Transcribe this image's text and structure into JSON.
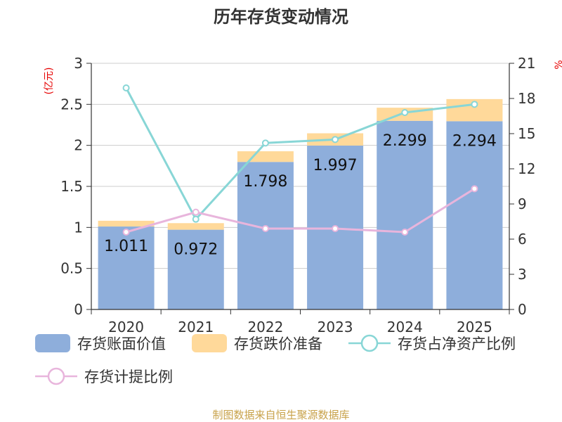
{
  "chart_data": {
    "type": "bar",
    "title": "历年存货变动情况",
    "categories": [
      "2020",
      "2021",
      "2022",
      "2023",
      "2024",
      "2025"
    ],
    "left_axis": {
      "unit": "(亿元)",
      "min": 0,
      "max": 3,
      "ticks": [
        "0",
        "0.5",
        "1",
        "1.5",
        "2",
        "2.5",
        "3"
      ]
    },
    "right_axis": {
      "unit": "%",
      "min": 0,
      "max": 21,
      "ticks": [
        "0",
        "3",
        "6",
        "9",
        "12",
        "15",
        "18",
        "21"
      ]
    },
    "series": [
      {
        "name": "存货账面价值",
        "type": "bar",
        "axis": "left",
        "color": "#8eaedb",
        "values": [
          1.011,
          0.972,
          1.798,
          1.997,
          2.299,
          2.294
        ],
        "labels": [
          "1.011",
          "0.972",
          "1.798",
          "1.997",
          "2.299",
          "2.294"
        ]
      },
      {
        "name": "存货跌价准备",
        "type": "bar",
        "axis": "left",
        "stacked": true,
        "color": "#ffd99a",
        "values": [
          0.07,
          0.08,
          0.13,
          0.15,
          0.16,
          0.27
        ]
      },
      {
        "name": "存货占净资产比例",
        "type": "line",
        "axis": "right",
        "color": "#88d6d6",
        "values": [
          18.9,
          7.7,
          14.2,
          14.5,
          16.8,
          17.5
        ]
      },
      {
        "name": "存货计提比例",
        "type": "line",
        "axis": "right",
        "color": "#e8b5dc",
        "values": [
          6.6,
          8.3,
          6.9,
          6.9,
          6.6,
          10.3
        ]
      }
    ],
    "grid": true,
    "legend_position": "bottom"
  },
  "footer": {
    "source": "制图数据来自恒生聚源数据库"
  }
}
